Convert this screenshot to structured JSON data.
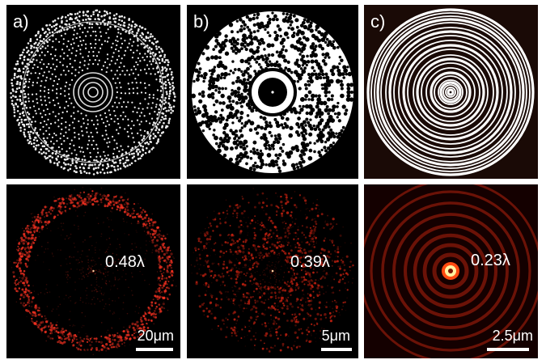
{
  "panels_top": [
    {
      "id": "a",
      "label": "a)"
    },
    {
      "id": "b",
      "label": "b)"
    },
    {
      "id": "c",
      "label": "c)"
    }
  ],
  "panels_bottom": [
    {
      "id": "a",
      "resolution": "0.48λ",
      "scale": "20μm",
      "color": "#ff3322"
    },
    {
      "id": "b",
      "resolution": "0.39λ",
      "scale": "5μm",
      "color": "#cc2211"
    },
    {
      "id": "c",
      "resolution": "0.23λ",
      "scale": "2.5μm",
      "color": "#e6301a"
    }
  ]
}
